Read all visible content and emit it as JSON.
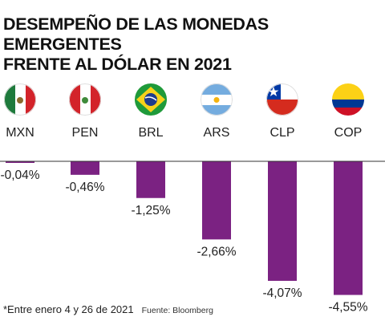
{
  "title_line1": "DESEMPEÑO DE LAS MONEDAS EMERGENTES",
  "title_line2": "FRENTE AL DÓLAR EN 2021",
  "footnote": "*Entre enero 4 y 26 de 2021",
  "source": "Fuente: Bloomberg",
  "colors": {
    "bar": "#7b2282",
    "baseline": "#333333",
    "text": "#1a1a1a"
  },
  "chart_data": {
    "type": "bar",
    "categories": [
      "MXN",
      "PEN",
      "BRL",
      "ARS",
      "CLP",
      "COP"
    ],
    "flags": [
      "mexico-flag-icon",
      "peru-flag-icon",
      "brazil-flag-icon",
      "argentina-flag-icon",
      "chile-flag-icon",
      "colombia-flag-icon"
    ],
    "values": [
      -0.04,
      -0.46,
      -1.25,
      -2.66,
      -4.07,
      -4.55
    ],
    "data_labels": [
      "-0,04%",
      "-0,46%",
      "-1,25%",
      "-2,66%",
      "-4,07%",
      "-4,55%"
    ],
    "title": "DESEMPEÑO DE LAS MONEDAS EMERGENTES FRENTE AL DÓLAR EN 2021",
    "ylim": [
      -4.6,
      0
    ],
    "grid": false,
    "legend": "none"
  }
}
